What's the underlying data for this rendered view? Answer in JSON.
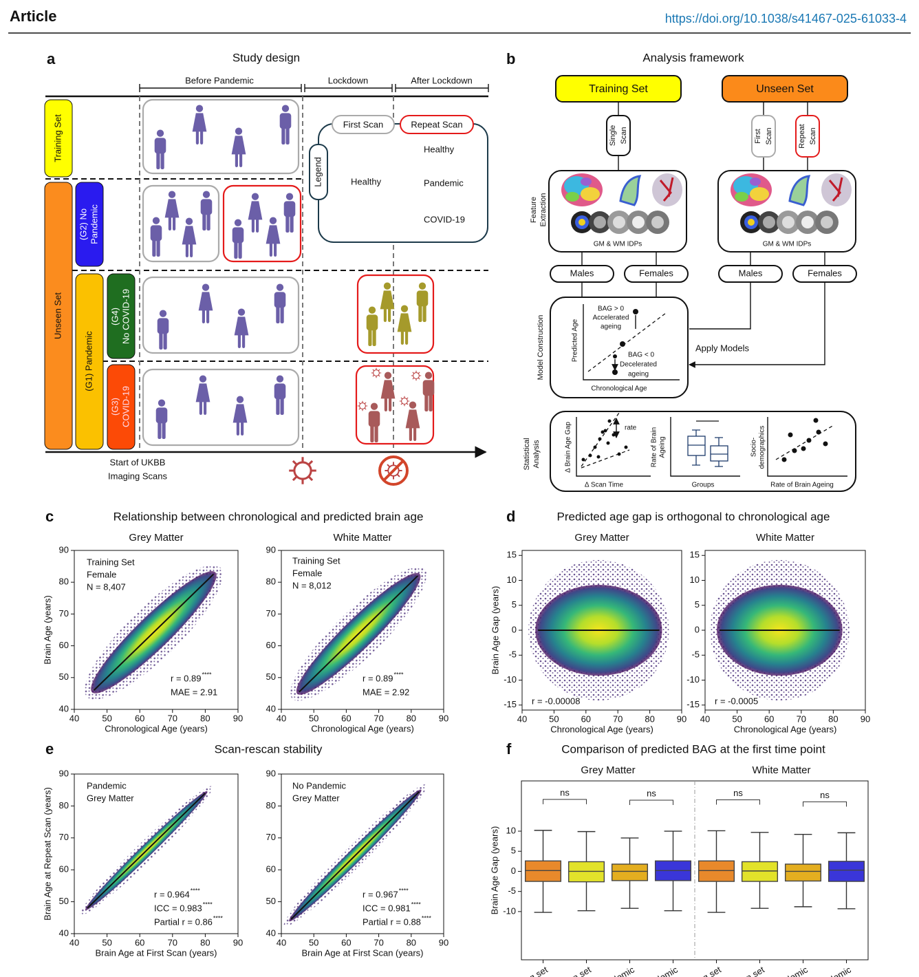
{
  "header": {
    "journal": "Article",
    "doi": "https://doi.org/10.1038/s41467-025-61033-4"
  },
  "panel_a": {
    "letter": "a",
    "title": "Study design",
    "periods": [
      "Before Pandemic",
      "Lockdown",
      "After Lockdown"
    ],
    "groups": {
      "training": "Training Set",
      "unseen": "Unseen Set",
      "g2": [
        "(G2) No",
        "Pandemic"
      ],
      "g1": "(G1) Pandemic",
      "g4": [
        "(G4)",
        "No COVID-19"
      ],
      "g3": [
        "(G3)",
        "COVID-19"
      ]
    },
    "legend": {
      "title": "Legend",
      "first_scan": "First Scan",
      "repeat_scan": "Repeat Scan",
      "items": [
        "Healthy",
        "Healthy",
        "Pandemic",
        "COVID-19"
      ]
    },
    "axis_label": [
      "Start of UKBB",
      "Imaging Scans"
    ]
  },
  "panel_b": {
    "letter": "b",
    "title": "Analysis framework",
    "training_set": "Training Set",
    "unseen_set": "Unseen Set",
    "single_scan": [
      "Single",
      "Scan"
    ],
    "first_scan": [
      "First",
      "Scan"
    ],
    "repeat_scan": [
      "Repeat",
      "Scan"
    ],
    "feature_extraction": [
      "Feature",
      "Extraction"
    ],
    "idps": "GM & WM IDPs",
    "males": "Males",
    "females": "Females",
    "model_construction": "Model Construction",
    "apply_models": "Apply Models",
    "model_plot": {
      "x_label": "Chronological Age",
      "y_label": "Predicted Age",
      "bag_pos": [
        "BAG > 0",
        "Accelerated",
        "ageing"
      ],
      "bag_neg": [
        "BAG < 0",
        "Decelerated",
        "ageing"
      ]
    },
    "statistical_analysis": [
      "Statistical",
      "Analysis"
    ],
    "stats_plots": [
      {
        "x_label": "Δ Scan Time",
        "y_label": [
          "Δ Brain Age Gap"
        ],
        "note": "rate"
      },
      {
        "x_label": "Groups",
        "y_label": [
          "Rate of Brain",
          "Ageing"
        ]
      },
      {
        "x_label": "Rate of Brain Ageing",
        "y_label": [
          "Socio-",
          "demographics"
        ]
      }
    ]
  },
  "panel_c": {
    "letter": "c",
    "title": "Relationship between chronological and predicted brain age"
  },
  "panel_d": {
    "letter": "d",
    "title": "Predicted age gap is orthogonal to chronological age"
  },
  "panel_e": {
    "letter": "e",
    "title": "Scan-rescan stability"
  },
  "panel_f": {
    "letter": "f",
    "title": "Comparison of predicted BAG at the first time point"
  },
  "chart_data": [
    {
      "type": "scatter",
      "title": "Grey Matter",
      "x_label": "Chronological Age (years)",
      "y_label": "Brain Age (years)",
      "xlim": [
        40,
        90
      ],
      "ylim": [
        40,
        90
      ],
      "xticks": [
        40,
        50,
        60,
        70,
        80,
        90
      ],
      "yticks": [
        40,
        50,
        60,
        70,
        80,
        90
      ],
      "annotations": [
        "Training Set",
        "Female",
        "N = 8,407"
      ],
      "stats": [
        {
          "text": "r = 0.89",
          "sup": "****"
        },
        {
          "text": "MAE = 2.91"
        }
      ],
      "fit": {
        "x": [
          46,
          82.5
        ],
        "y": [
          46,
          82.5
        ]
      }
    },
    {
      "type": "scatter",
      "title": "White Matter",
      "x_label": "Chronological Age (years)",
      "xlim": [
        40,
        90
      ],
      "ylim": [
        40,
        90
      ],
      "xticks": [
        40,
        50,
        60,
        70,
        80,
        90
      ],
      "yticks": [
        40,
        50,
        60,
        70,
        80,
        90
      ],
      "annotations": [
        "Training Set",
        "Female",
        "N = 8,012"
      ],
      "stats": [
        {
          "text": "r = 0.89",
          "sup": "****"
        },
        {
          "text": "MAE = 2.92"
        }
      ],
      "fit": {
        "x": [
          45.5,
          82
        ],
        "y": [
          45.5,
          82
        ]
      }
    },
    {
      "type": "scatter",
      "title": "Grey Matter",
      "x_label": "Chronological Age (years)",
      "y_label": "Brain Age Gap (years)",
      "xlim": [
        40,
        90
      ],
      "ylim": [
        -16,
        16
      ],
      "xticks": [
        40,
        50,
        60,
        70,
        80,
        90
      ],
      "yticks": [
        -15,
        -10,
        -5,
        0,
        5,
        10,
        15
      ],
      "annotations": [],
      "stats": [
        {
          "text": "r = -0.00008"
        }
      ],
      "fit": {
        "x": [
          45,
          83
        ],
        "y": [
          0,
          0
        ]
      }
    },
    {
      "type": "scatter",
      "title": "White Matter",
      "x_label": "Chronological Age (years)",
      "xlim": [
        40,
        90
      ],
      "ylim": [
        -16,
        16
      ],
      "xticks": [
        40,
        50,
        60,
        70,
        80,
        90
      ],
      "yticks": [
        -15,
        -10,
        -5,
        0,
        5,
        10,
        15
      ],
      "annotations": [],
      "stats": [
        {
          "text": "r = -0.0005"
        }
      ],
      "fit": {
        "x": [
          44.5,
          82
        ],
        "y": [
          0,
          0
        ]
      }
    },
    {
      "type": "scatter",
      "x_label": "Brain Age at First Scan (years)",
      "y_label": "Brain Age at Repeat Scan (years)",
      "xlim": [
        40,
        90
      ],
      "ylim": [
        40,
        90
      ],
      "xticks": [
        40,
        50,
        60,
        70,
        80,
        90
      ],
      "yticks": [
        40,
        50,
        60,
        70,
        80,
        90
      ],
      "annotations": [
        "Pandemic",
        "Grey Matter"
      ],
      "stats": [
        {
          "text": "r = 0.964",
          "sup": "****"
        },
        {
          "text": "ICC = 0.983",
          "sup": "****"
        },
        {
          "text": "Partial r = 0.86",
          "sup": "****"
        }
      ],
      "fit": {
        "x": [
          44,
          80
        ],
        "y": [
          48,
          84
        ]
      }
    },
    {
      "type": "scatter",
      "x_label": "Brain Age at First Scan (years)",
      "xlim": [
        40,
        90
      ],
      "ylim": [
        40,
        90
      ],
      "xticks": [
        40,
        50,
        60,
        70,
        80,
        90
      ],
      "yticks": [
        40,
        50,
        60,
        70,
        80,
        90
      ],
      "annotations": [
        "No Pandemic",
        "Grey Matter"
      ],
      "stats": [
        {
          "text": "r = 0.967",
          "sup": "****"
        },
        {
          "text": "ICC = 0.981",
          "sup": "****"
        },
        {
          "text": "Partial r = 0.88",
          "sup": "****"
        }
      ],
      "fit": {
        "x": [
          43,
          82.5
        ],
        "y": [
          44.5,
          84.5
        ]
      }
    },
    {
      "type": "box",
      "groups": [
        "Grey Matter",
        "White Matter"
      ],
      "y_label": "Brain Age Gap (years)",
      "ylim": [
        -22,
        22.5
      ],
      "yticks": [
        -10,
        -5,
        0,
        5,
        10
      ],
      "categories": [
        "Training set",
        "Unseen set",
        "Pandemic",
        "No Pandemic",
        "Training set",
        "Unseen set",
        "Pandemic",
        "No Pandemic"
      ],
      "colors": [
        "#e8892b",
        "#e2e22a",
        "#e4ae20",
        "#3a36d9",
        "#e8892b",
        "#e2e22a",
        "#e4ae20",
        "#3a36d9"
      ],
      "medians": [
        0.2,
        0.0,
        0.0,
        0.2,
        0.2,
        0.1,
        0.0,
        0.3
      ],
      "q1": [
        -2.5,
        -2.6,
        -2.3,
        -2.3,
        -2.5,
        -2.5,
        -2.4,
        -2.5
      ],
      "q3": [
        2.6,
        2.4,
        1.8,
        2.6,
        2.6,
        2.4,
        1.8,
        2.5
      ],
      "whisker_low": [
        -10.2,
        -9.8,
        -9.2,
        -9.8,
        -10.2,
        -9.2,
        -8.8,
        -9.3
      ],
      "whisker_high": [
        10.2,
        9.9,
        8.3,
        10.0,
        10.1,
        9.7,
        9.2,
        9.6
      ],
      "annotations": [
        "ns",
        "ns",
        "ns",
        "ns"
      ]
    }
  ]
}
